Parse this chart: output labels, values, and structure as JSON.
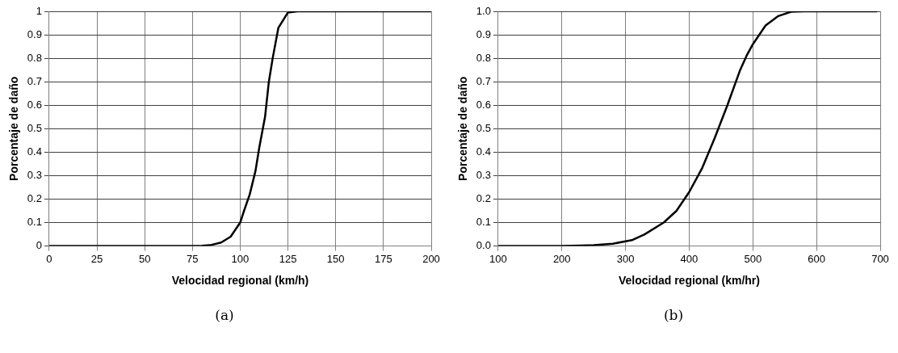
{
  "chart_data": [
    {
      "type": "line",
      "xlabel": "Velocidad regional (km/h)",
      "ylabel": "Porcentaje de daño",
      "annotations": [
        "(a)"
      ],
      "xlim": [
        0,
        200
      ],
      "xticks": [
        0,
        25,
        50,
        75,
        100,
        125,
        150,
        175,
        200
      ],
      "ylim": [
        0,
        1
      ],
      "yticks": [
        0,
        0.1,
        0.2,
        0.3,
        0.4,
        0.5,
        0.6,
        0.7,
        0.8,
        0.9,
        1
      ],
      "grid": true,
      "legend": false,
      "marker": "none",
      "line_style": "solid",
      "series": [
        {
          "color": "#000000",
          "x": [
            0,
            75,
            80,
            85,
            90,
            95,
            100,
            102,
            105,
            108,
            110,
            113,
            115,
            117,
            120,
            125,
            130,
            200
          ],
          "values": [
            0,
            0,
            0.001,
            0.005,
            0.015,
            0.04,
            0.1,
            0.15,
            0.22,
            0.32,
            0.42,
            0.55,
            0.7,
            0.8,
            0.93,
            0.995,
            1,
            1
          ]
        }
      ]
    },
    {
      "type": "line",
      "xlabel": "Velocidad regional (km/hr)",
      "ylabel": "Porcentaje de daño",
      "annotations": [
        "(b)"
      ],
      "xlim": [
        100,
        700
      ],
      "xticks": [
        100,
        200,
        300,
        400,
        500,
        600,
        700
      ],
      "ylim": [
        0,
        1
      ],
      "yticks": [
        {
          "value": 0,
          "label": "0.0"
        },
        0.1,
        0.2,
        0.3,
        0.4,
        0.5,
        0.6,
        0.7,
        0.8,
        0.9,
        {
          "value": 1,
          "label": "1.0"
        }
      ],
      "grid": true,
      "legend": false,
      "marker": "none",
      "line_style": "solid",
      "series": [
        {
          "color": "#000000",
          "x": [
            100,
            200,
            230,
            250,
            280,
            300,
            310,
            330,
            360,
            380,
            400,
            420,
            440,
            460,
            480,
            490,
            500,
            520,
            540,
            560,
            580,
            695
          ],
          "values": [
            0,
            0,
            0.002,
            0.004,
            0.01,
            0.02,
            0.025,
            0.05,
            0.1,
            0.15,
            0.23,
            0.33,
            0.46,
            0.6,
            0.75,
            0.81,
            0.86,
            0.94,
            0.98,
            0.998,
            1,
            1
          ]
        }
      ]
    }
  ]
}
